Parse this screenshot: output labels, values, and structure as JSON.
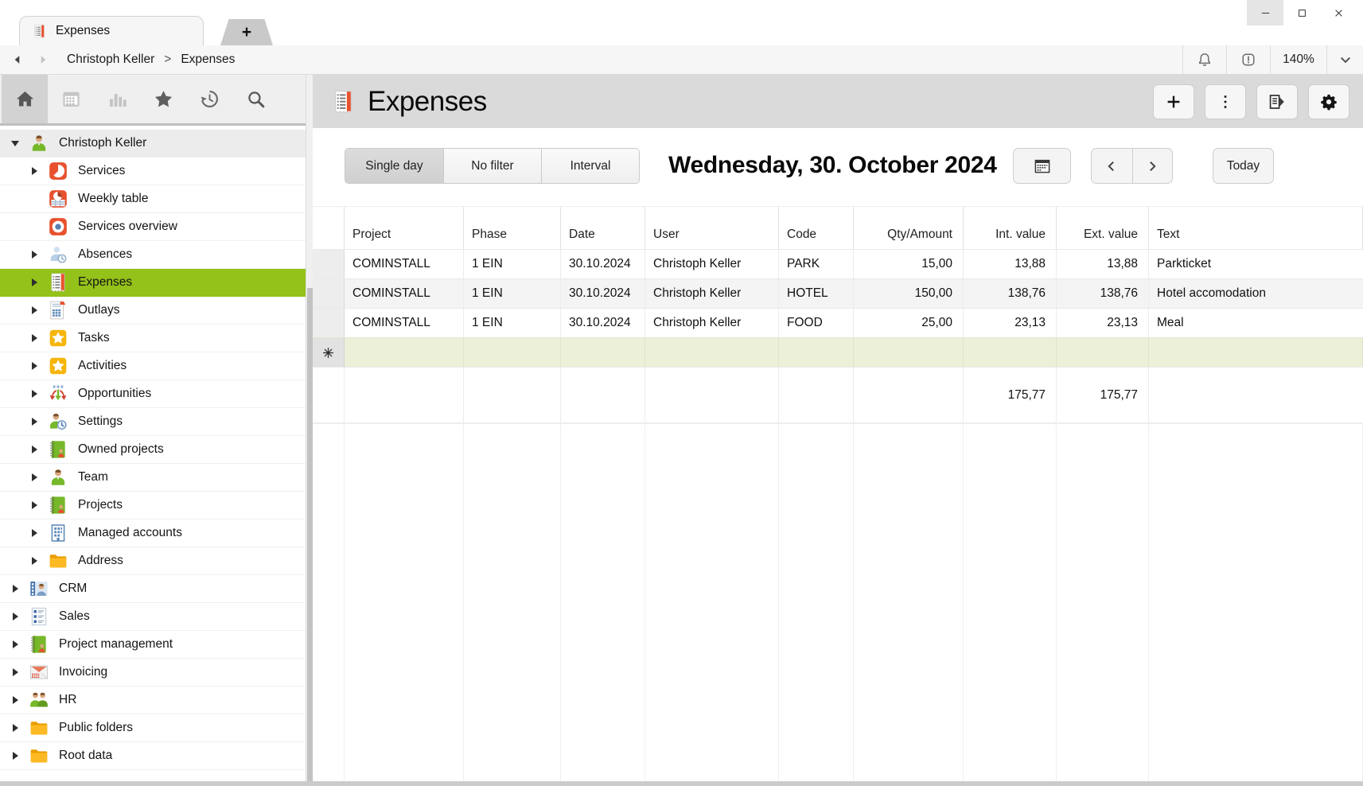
{
  "window": {
    "tab": {
      "label": "Expenses",
      "icon": "receipt"
    },
    "new_tab_label": "+",
    "controls": [
      {
        "name": "minimize",
        "icon": "win-min"
      },
      {
        "name": "maximize",
        "icon": "win-max"
      },
      {
        "name": "close",
        "icon": "win-close"
      }
    ]
  },
  "navbar": {
    "breadcrumb": [
      {
        "label": "Christoph Keller"
      },
      {
        "label": "Expenses"
      }
    ],
    "separator": ">",
    "zoom_level": "140%"
  },
  "sidebar": {
    "toolbar": [
      {
        "name": "home",
        "icon": "home",
        "active": true
      },
      {
        "name": "calendar",
        "icon": "calendar",
        "active": false
      },
      {
        "name": "statistics",
        "icon": "chart",
        "active": false
      },
      {
        "name": "favorites",
        "icon": "star",
        "active": false
      },
      {
        "name": "history",
        "icon": "history",
        "active": false
      },
      {
        "name": "search",
        "icon": "search",
        "active": false
      }
    ],
    "tree": [
      {
        "label": "Christoph Keller",
        "icon": "user",
        "level": 0,
        "expander": "expanded",
        "selected": false,
        "shaded": true
      },
      {
        "label": "Services",
        "icon": "services",
        "level": 1,
        "expander": "collapsed"
      },
      {
        "label": "Weekly table",
        "icon": "weekly",
        "level": 1,
        "expander": "none"
      },
      {
        "label": "Services overview",
        "icon": "overview",
        "level": 1,
        "expander": "none"
      },
      {
        "label": "Absences",
        "icon": "absences",
        "level": 1,
        "expander": "collapsed"
      },
      {
        "label": "Expenses",
        "icon": "receipt",
        "level": 1,
        "expander": "collapsed",
        "selected": true
      },
      {
        "label": "Outlays",
        "icon": "outlays",
        "level": 1,
        "expander": "collapsed"
      },
      {
        "label": "Tasks",
        "icon": "tstar",
        "level": 1,
        "expander": "collapsed"
      },
      {
        "label": "Activities",
        "icon": "tstar",
        "level": 1,
        "expander": "collapsed"
      },
      {
        "label": "Opportunities",
        "icon": "opportunities",
        "level": 1,
        "expander": "collapsed"
      },
      {
        "label": "Settings",
        "icon": "settings",
        "level": 1,
        "expander": "collapsed"
      },
      {
        "label": "Owned projects",
        "icon": "notebook",
        "level": 1,
        "expander": "collapsed"
      },
      {
        "label": "Team",
        "icon": "user",
        "level": 1,
        "expander": "collapsed"
      },
      {
        "label": "Projects",
        "icon": "notebook",
        "level": 1,
        "expander": "collapsed"
      },
      {
        "label": "Managed accounts",
        "icon": "accounts",
        "level": 1,
        "expander": "collapsed"
      },
      {
        "label": "Address",
        "icon": "folder",
        "level": 1,
        "expander": "collapsed"
      },
      {
        "label": "CRM",
        "icon": "crm",
        "level": 0,
        "expander": "collapsed"
      },
      {
        "label": "Sales",
        "icon": "sales",
        "level": 0,
        "expander": "collapsed"
      },
      {
        "label": "Project management",
        "icon": "notebook",
        "level": 0,
        "expander": "collapsed"
      },
      {
        "label": "Invoicing",
        "icon": "invoicing",
        "level": 0,
        "expander": "collapsed"
      },
      {
        "label": "HR",
        "icon": "hr",
        "level": 0,
        "expander": "collapsed"
      },
      {
        "label": "Public folders",
        "icon": "folder",
        "level": 0,
        "expander": "collapsed"
      },
      {
        "label": "Root data",
        "icon": "folder",
        "level": 0,
        "expander": "collapsed"
      }
    ]
  },
  "main": {
    "title": "Expenses",
    "title_icon": "receipt",
    "actions": [
      {
        "name": "add",
        "icon": "plus"
      },
      {
        "name": "more",
        "icon": "kebab"
      },
      {
        "name": "export",
        "icon": "export"
      },
      {
        "name": "settings",
        "icon": "gear"
      }
    ],
    "filters": {
      "options": [
        "Single day",
        "No filter",
        "Interval"
      ],
      "selected": "Single day"
    },
    "date_heading": "Wednesday, 30. October 2024",
    "date_controls": {
      "today_label": "Today"
    },
    "table": {
      "columns": [
        {
          "label": "Project",
          "align": "left"
        },
        {
          "label": "Phase",
          "align": "left"
        },
        {
          "label": "Date",
          "align": "left"
        },
        {
          "label": "User",
          "align": "left"
        },
        {
          "label": "Code",
          "align": "left"
        },
        {
          "label": "Qty/Amount",
          "align": "right"
        },
        {
          "label": "Int. value",
          "align": "right"
        },
        {
          "label": "Ext. value",
          "align": "right"
        },
        {
          "label": "Text",
          "align": "left"
        }
      ],
      "rows": [
        {
          "cells": [
            "COMINSTALL",
            "1 EIN",
            "30.10.2024",
            "Christoph Keller",
            "PARK",
            "15,00",
            "13,88",
            "13,88",
            "Parkticket"
          ]
        },
        {
          "cells": [
            "COMINSTALL",
            "1 EIN",
            "30.10.2024",
            "Christoph Keller",
            "HOTEL",
            "150,00",
            "138,76",
            "138,76",
            "Hotel accomodation"
          ]
        },
        {
          "cells": [
            "COMINSTALL",
            "1 EIN",
            "30.10.2024",
            "Christoph Keller",
            "FOOD",
            "25,00",
            "23,13",
            "23,13",
            "Meal"
          ]
        }
      ],
      "new_row_icon": "asterisk",
      "totals": {
        "int_value": "175,77",
        "ext_value": "175,77"
      }
    }
  },
  "colors": {
    "accent_green": "#94c11a",
    "new_row_bg": "#edf0d8",
    "header_band": "#dadada",
    "brand_orange": "#e8512e"
  }
}
